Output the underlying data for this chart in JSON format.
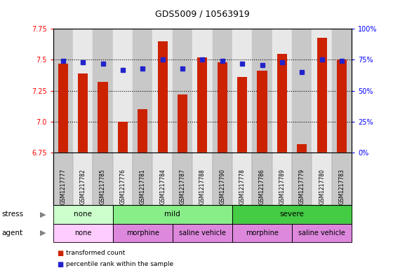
{
  "title": "GDS5009 / 10563919",
  "samples": [
    "GSM1217777",
    "GSM1217782",
    "GSM1217785",
    "GSM1217776",
    "GSM1217781",
    "GSM1217784",
    "GSM1217787",
    "GSM1217788",
    "GSM1217790",
    "GSM1217778",
    "GSM1217786",
    "GSM1217789",
    "GSM1217779",
    "GSM1217780",
    "GSM1217783"
  ],
  "transformed_count": [
    7.47,
    7.39,
    7.32,
    7.0,
    7.1,
    7.65,
    7.22,
    7.52,
    7.48,
    7.36,
    7.41,
    7.55,
    6.82,
    7.68,
    7.5
  ],
  "percentile_rank": [
    74,
    73,
    72,
    67,
    68,
    75,
    68,
    75,
    74,
    72,
    71,
    73,
    65,
    75,
    74
  ],
  "ylim_left": [
    6.75,
    7.75
  ],
  "ylim_right": [
    0,
    100
  ],
  "yticks_left": [
    6.75,
    7.0,
    7.25,
    7.5,
    7.75
  ],
  "yticks_right": [
    0,
    25,
    50,
    75,
    100
  ],
  "ytick_labels_right": [
    "0%",
    "25%",
    "50%",
    "75%",
    "100%"
  ],
  "bar_color": "#cc2200",
  "dot_color": "#2222cc",
  "col_bg_even": "#c8c8c8",
  "col_bg_odd": "#e8e8e8",
  "stress_groups": [
    {
      "label": "none",
      "start": 0,
      "end": 3,
      "color": "#ccffcc"
    },
    {
      "label": "mild",
      "start": 3,
      "end": 9,
      "color": "#88ee88"
    },
    {
      "label": "severe",
      "start": 9,
      "end": 15,
      "color": "#44cc44"
    }
  ],
  "agent_groups": [
    {
      "label": "none",
      "start": 0,
      "end": 3,
      "color": "#ffccff"
    },
    {
      "label": "morphine",
      "start": 3,
      "end": 6,
      "color": "#dd88dd"
    },
    {
      "label": "saline vehicle",
      "start": 6,
      "end": 9,
      "color": "#dd88dd"
    },
    {
      "label": "morphine",
      "start": 9,
      "end": 12,
      "color": "#dd88dd"
    },
    {
      "label": "saline vehicle",
      "start": 12,
      "end": 15,
      "color": "#dd88dd"
    }
  ],
  "legend_bar_label": "transformed count",
  "legend_dot_label": "percentile rank within the sample"
}
